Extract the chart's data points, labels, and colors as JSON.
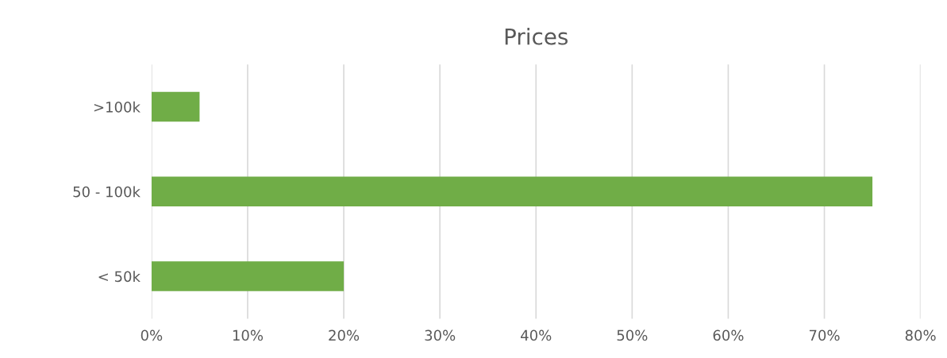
{
  "chart_data": {
    "type": "bar",
    "orientation": "horizontal",
    "title": "Prices",
    "categories": [
      ">100k",
      "50 - 100k",
      "< 50k"
    ],
    "values": [
      5,
      75,
      20
    ],
    "color": "#70ad47",
    "xlim": [
      0,
      80
    ],
    "xticks": [
      {
        "value": 0,
        "label": "0%"
      },
      {
        "value": 10,
        "label": "10%"
      },
      {
        "value": 20,
        "label": "20%"
      },
      {
        "value": 30,
        "label": "30%"
      },
      {
        "value": 40,
        "label": "40%"
      },
      {
        "value": 50,
        "label": "50%"
      },
      {
        "value": 60,
        "label": "60%"
      },
      {
        "value": 70,
        "label": "70%"
      },
      {
        "value": 80,
        "label": "80%"
      }
    ],
    "grid": "x",
    "legend": false
  }
}
